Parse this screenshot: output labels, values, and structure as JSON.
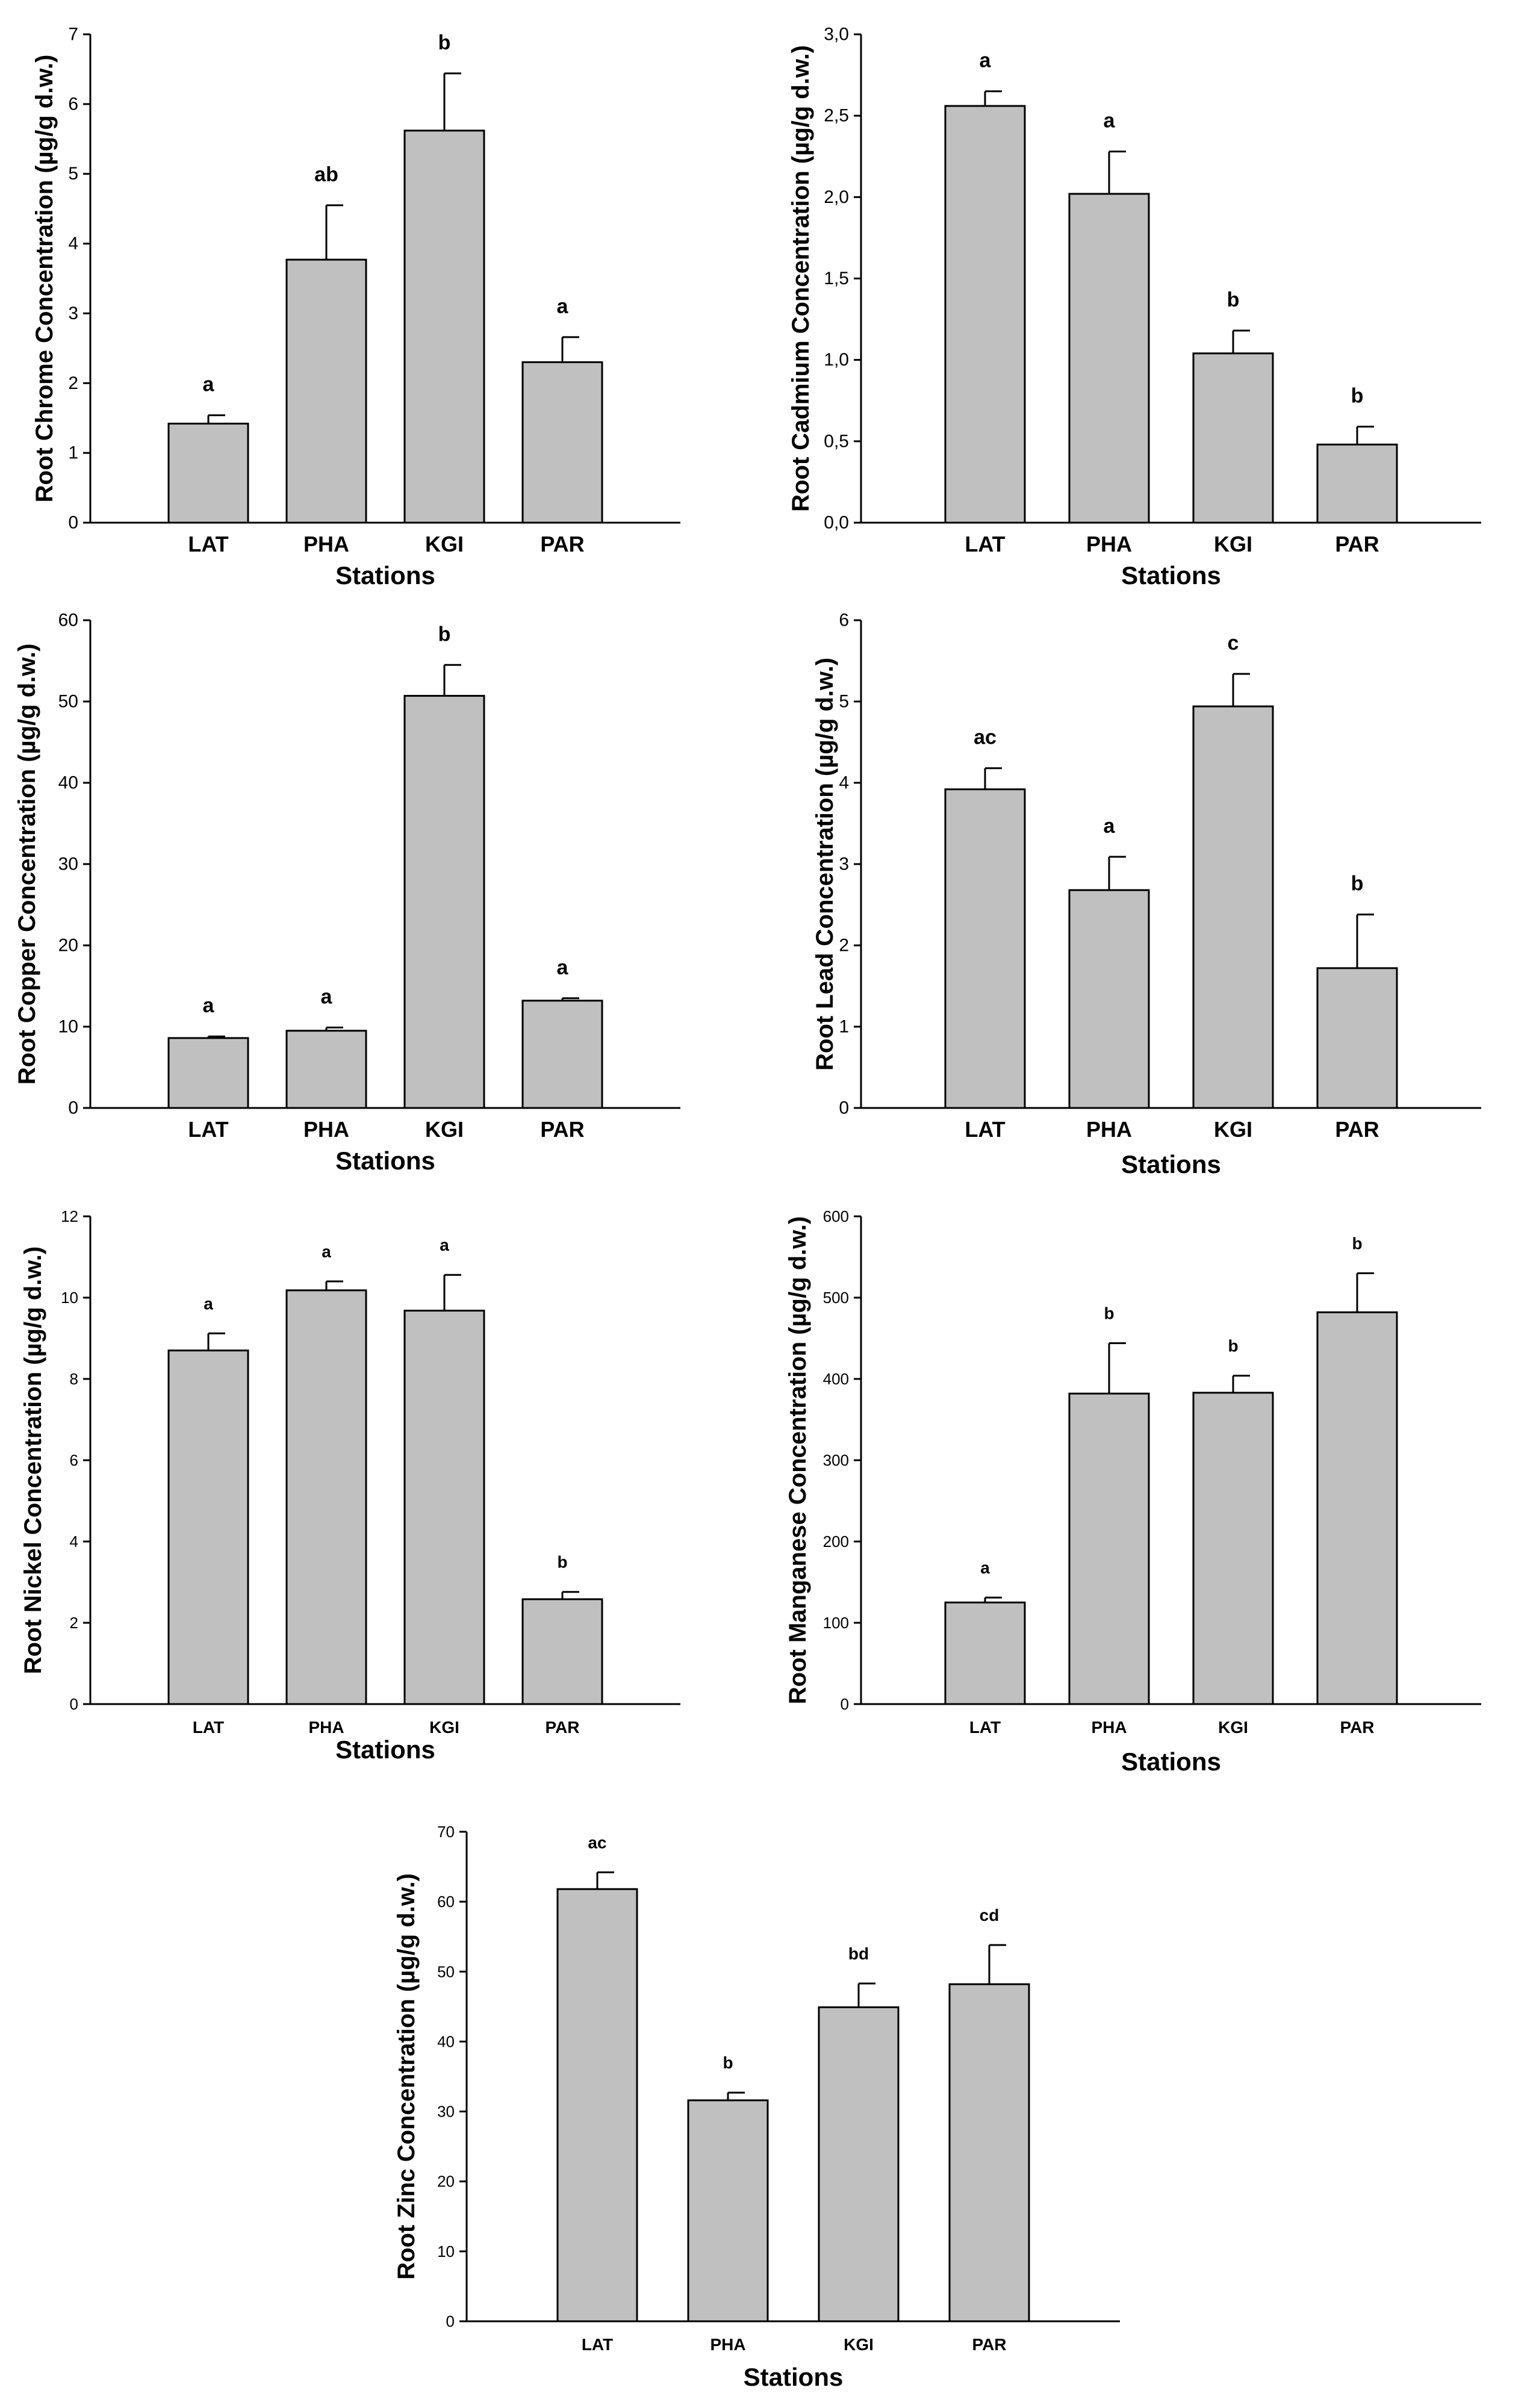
{
  "xlabel": "Stations",
  "chart_data": [
    {
      "type": "bar",
      "title": "",
      "xlabel": "Stations",
      "ylabel": "Root Chrome Concentration (µg/g d.w.)",
      "categories": [
        "LAT",
        "PHA",
        "KGI",
        "PAR"
      ],
      "values": [
        1.42,
        3.77,
        5.62,
        2.3
      ],
      "errors": [
        0.12,
        0.78,
        0.82,
        0.36
      ],
      "letters": [
        "a",
        "ab",
        "b",
        "a"
      ],
      "ylim": [
        0,
        7
      ],
      "yticks": [
        0,
        1,
        2,
        3,
        4,
        5,
        6,
        7
      ],
      "ytick_labels": [
        "0",
        "1",
        "2",
        "3",
        "4",
        "5",
        "6",
        "7"
      ],
      "bar_color": "#c0c0c0"
    },
    {
      "type": "bar",
      "title": "",
      "xlabel": "Stations",
      "ylabel": "Root Cadmium Concentration (µg/g d.w.)",
      "categories": [
        "LAT",
        "PHA",
        "KGI",
        "PAR"
      ],
      "values": [
        2.56,
        2.02,
        1.04,
        0.48
      ],
      "errors": [
        0.09,
        0.26,
        0.14,
        0.11
      ],
      "letters": [
        "a",
        "a",
        "b",
        "b"
      ],
      "ylim": [
        0,
        3
      ],
      "yticks": [
        0,
        0.5,
        1,
        1.5,
        2,
        2.5,
        3
      ],
      "ytick_labels": [
        "0,0",
        "0,5",
        "1,0",
        "1,5",
        "2,0",
        "2,5",
        "3,0"
      ],
      "bar_color": "#c0c0c0"
    },
    {
      "type": "bar",
      "title": "",
      "xlabel": "Stations",
      "ylabel": "Root Copper Concentration (µg/g d.w.)",
      "categories": [
        "LAT",
        "PHA",
        "KGI",
        "PAR"
      ],
      "values": [
        8.6,
        9.5,
        50.7,
        13.2
      ],
      "errors": [
        0.2,
        0.4,
        3.8,
        0.3
      ],
      "letters": [
        "a",
        "a",
        "b",
        "a"
      ],
      "ylim": [
        0,
        60
      ],
      "yticks": [
        0,
        10,
        20,
        30,
        40,
        50,
        60
      ],
      "ytick_labels": [
        "0",
        "10",
        "20",
        "30",
        "40",
        "50",
        "60"
      ],
      "bar_color": "#c0c0c0"
    },
    {
      "type": "bar",
      "title": "",
      "xlabel": "Stations",
      "ylabel": "Root Lead Concentration (µg/g d.w.)",
      "categories": [
        "LAT",
        "PHA",
        "KGI",
        "PAR"
      ],
      "values": [
        3.92,
        2.68,
        4.94,
        1.72
      ],
      "errors": [
        0.26,
        0.41,
        0.4,
        0.66
      ],
      "letters": [
        "ac",
        "a",
        "c",
        "b"
      ],
      "ylim": [
        0,
        6
      ],
      "yticks": [
        0,
        1,
        2,
        3,
        4,
        5,
        6
      ],
      "ytick_labels": [
        "0",
        "1",
        "2",
        "3",
        "4",
        "5",
        "6"
      ],
      "bar_color": "#c0c0c0"
    },
    {
      "type": "bar",
      "title": "",
      "xlabel": "Stations",
      "ylabel": "Root Nickel Concentration (µg/g d.w.)",
      "categories": [
        "LAT",
        "PHA",
        "KGI",
        "PAR"
      ],
      "values": [
        8.7,
        10.18,
        9.68,
        2.58
      ],
      "errors": [
        0.42,
        0.22,
        0.88,
        0.18
      ],
      "letters": [
        "a",
        "a",
        "a",
        "b"
      ],
      "ylim": [
        0,
        12
      ],
      "yticks": [
        0,
        2,
        4,
        6,
        8,
        10,
        12
      ],
      "ytick_labels": [
        "0",
        "2",
        "4",
        "6",
        "8",
        "10",
        "12"
      ],
      "bar_color": "#c0c0c0"
    },
    {
      "type": "bar",
      "title": "",
      "xlabel": "Stations",
      "ylabel": "Root Manganese Concentration (µg/g d.w.)",
      "categories": [
        "LAT",
        "PHA",
        "KGI",
        "PAR"
      ],
      "values": [
        125,
        382,
        383,
        482
      ],
      "errors": [
        6,
        62,
        21,
        48
      ],
      "letters": [
        "a",
        "b",
        "b",
        "b"
      ],
      "ylim": [
        0,
        600
      ],
      "yticks": [
        0,
        100,
        200,
        300,
        400,
        500,
        600
      ],
      "ytick_labels": [
        "0",
        "100",
        "200",
        "300",
        "400",
        "500",
        "600"
      ],
      "bar_color": "#c0c0c0"
    },
    {
      "type": "bar",
      "title": "",
      "xlabel": "Stations",
      "ylabel": "Root Zinc Concentration (µg/g d.w.)",
      "categories": [
        "LAT",
        "PHA",
        "KGI",
        "PAR"
      ],
      "values": [
        61.8,
        31.6,
        44.9,
        48.2
      ],
      "errors": [
        2.4,
        1.1,
        3.4,
        5.6
      ],
      "letters": [
        "ac",
        "b",
        "bd",
        "cd"
      ],
      "ylim": [
        0,
        70
      ],
      "yticks": [
        0,
        10,
        20,
        30,
        40,
        50,
        60,
        70
      ],
      "ytick_labels": [
        "0",
        "10",
        "20",
        "30",
        "40",
        "50",
        "60",
        "70"
      ],
      "bar_color": "#c0c0c0"
    }
  ]
}
